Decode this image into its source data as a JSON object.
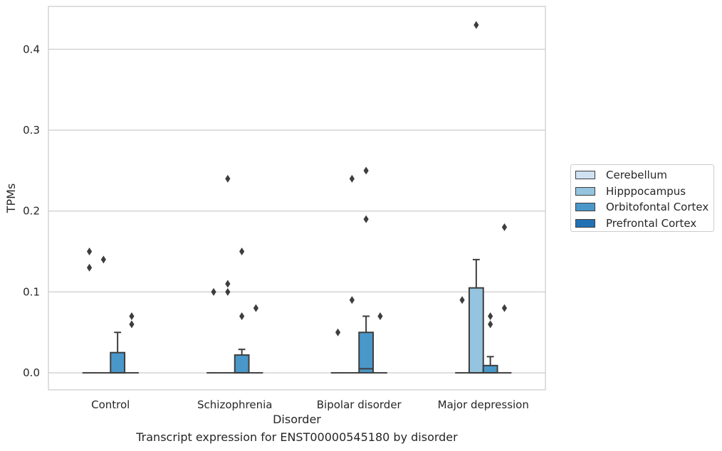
{
  "caption": "Transcript expression for ENST00000545180 by disorder",
  "chart_data": {
    "type": "box",
    "xlabel": "Disorder",
    "ylabel": "TPMs",
    "categories": [
      "Control",
      "Schizophrenia",
      "Bipolar disorder",
      "Major depression"
    ],
    "ylim": [
      -0.021,
      0.453
    ],
    "yticks": [
      0.0,
      0.1,
      0.2,
      0.3,
      0.4
    ],
    "ytick_labels": [
      "0.0",
      "0.1",
      "0.2",
      "0.3",
      "0.4"
    ],
    "grid": "horizontal",
    "legend_position": "right",
    "series": [
      {
        "name": "Cerebellum",
        "color": "#d0e1f2",
        "boxes": [
          {
            "q1": 0,
            "median": 0,
            "q3": 0,
            "whisker_low": 0,
            "whisker_high": 0,
            "outliers": [
              0.15,
              0.13
            ]
          },
          {
            "q1": 0,
            "median": 0,
            "q3": 0,
            "whisker_low": 0,
            "whisker_high": 0,
            "outliers": [
              0.1
            ]
          },
          {
            "q1": 0,
            "median": 0,
            "q3": 0,
            "whisker_low": 0,
            "whisker_high": 0,
            "outliers": [
              0.05
            ]
          },
          {
            "q1": 0,
            "median": 0,
            "q3": 0,
            "whisker_low": 0,
            "whisker_high": 0,
            "outliers": [
              0.09
            ]
          }
        ]
      },
      {
        "name": "Hipppocampus",
        "color": "#94c4df",
        "boxes": [
          {
            "q1": 0,
            "median": 0,
            "q3": 0,
            "whisker_low": 0,
            "whisker_high": 0,
            "outliers": [
              0.14
            ]
          },
          {
            "q1": 0,
            "median": 0,
            "q3": 0,
            "whisker_low": 0,
            "whisker_high": 0,
            "outliers": [
              0.24,
              0.11,
              0.1
            ]
          },
          {
            "q1": 0,
            "median": 0,
            "q3": 0,
            "whisker_low": 0,
            "whisker_high": 0,
            "outliers": [
              0.24,
              0.09
            ]
          },
          {
            "q1": 0,
            "median": 0,
            "q3": 0.105,
            "whisker_low": 0,
            "whisker_high": 0.14,
            "outliers": [
              0.43
            ]
          }
        ]
      },
      {
        "name": "Orbitofontal Cortex",
        "color": "#4a98c9",
        "boxes": [
          {
            "q1": 0,
            "median": 0,
            "q3": 0.025,
            "whisker_low": 0,
            "whisker_high": 0.05,
            "outliers": []
          },
          {
            "q1": 0,
            "median": 0,
            "q3": 0.022,
            "whisker_low": 0,
            "whisker_high": 0.029,
            "outliers": [
              0.15,
              0.07
            ]
          },
          {
            "q1": 0,
            "median": 0.005,
            "q3": 0.05,
            "whisker_low": 0,
            "whisker_high": 0.07,
            "outliers": [
              0.25,
              0.19
            ]
          },
          {
            "q1": 0,
            "median": 0,
            "q3": 0.009,
            "whisker_low": 0,
            "whisker_high": 0.02,
            "outliers": [
              0.07,
              0.06
            ]
          }
        ]
      },
      {
        "name": "Prefrontal Cortex",
        "color": "#2171b5",
        "boxes": [
          {
            "q1": 0,
            "median": 0,
            "q3": 0,
            "whisker_low": 0,
            "whisker_high": 0,
            "outliers": [
              0.07,
              0.06
            ]
          },
          {
            "q1": 0,
            "median": 0,
            "q3": 0,
            "whisker_low": 0,
            "whisker_high": 0,
            "outliers": [
              0.08
            ]
          },
          {
            "q1": 0,
            "median": 0,
            "q3": 0,
            "whisker_low": 0,
            "whisker_high": 0,
            "outliers": [
              0.07
            ]
          },
          {
            "q1": 0,
            "median": 0,
            "q3": 0,
            "whisker_low": 0,
            "whisker_high": 0,
            "outliers": [
              0.18,
              0.08
            ]
          }
        ]
      }
    ]
  }
}
